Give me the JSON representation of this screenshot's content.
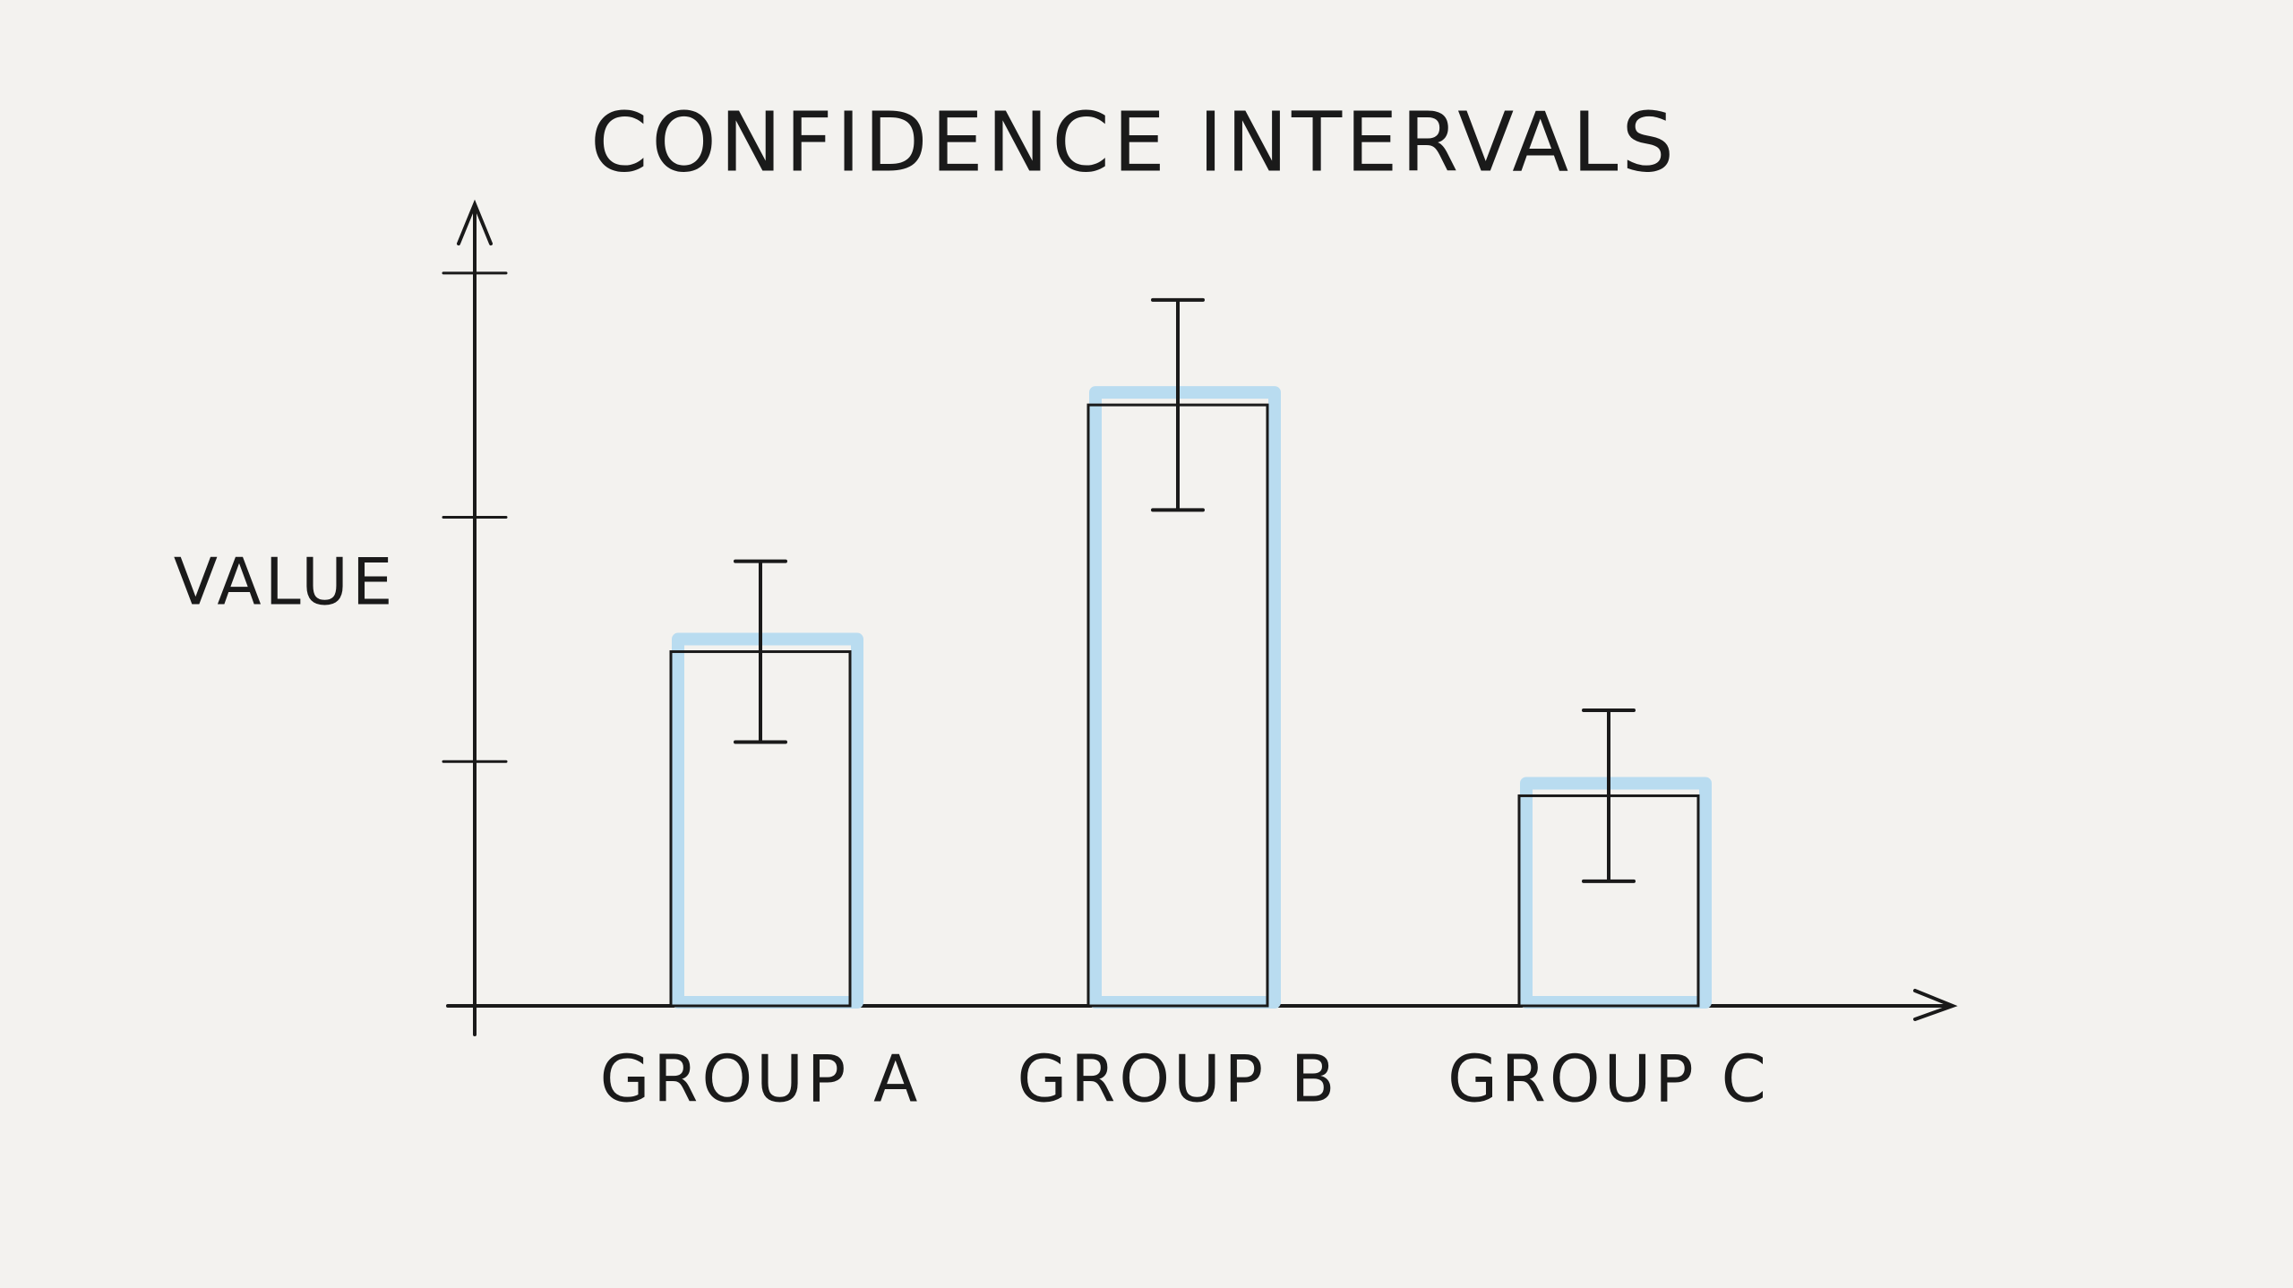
{
  "chart_data": {
    "type": "bar",
    "title": "CONFIDENCE INTERVALS",
    "y_label": "VALUE",
    "categories": [
      "GROUP A",
      "GROUP B",
      "GROUP C"
    ],
    "values": [
      1.45,
      2.46,
      0.86
    ],
    "errors": [
      0.37,
      0.43,
      0.35
    ],
    "color": "#b9dcf0",
    "ylim": [
      0,
      3.3
    ],
    "yticks": [
      1,
      2,
      3
    ],
    "show_tick_labels": false,
    "grid": false
  }
}
